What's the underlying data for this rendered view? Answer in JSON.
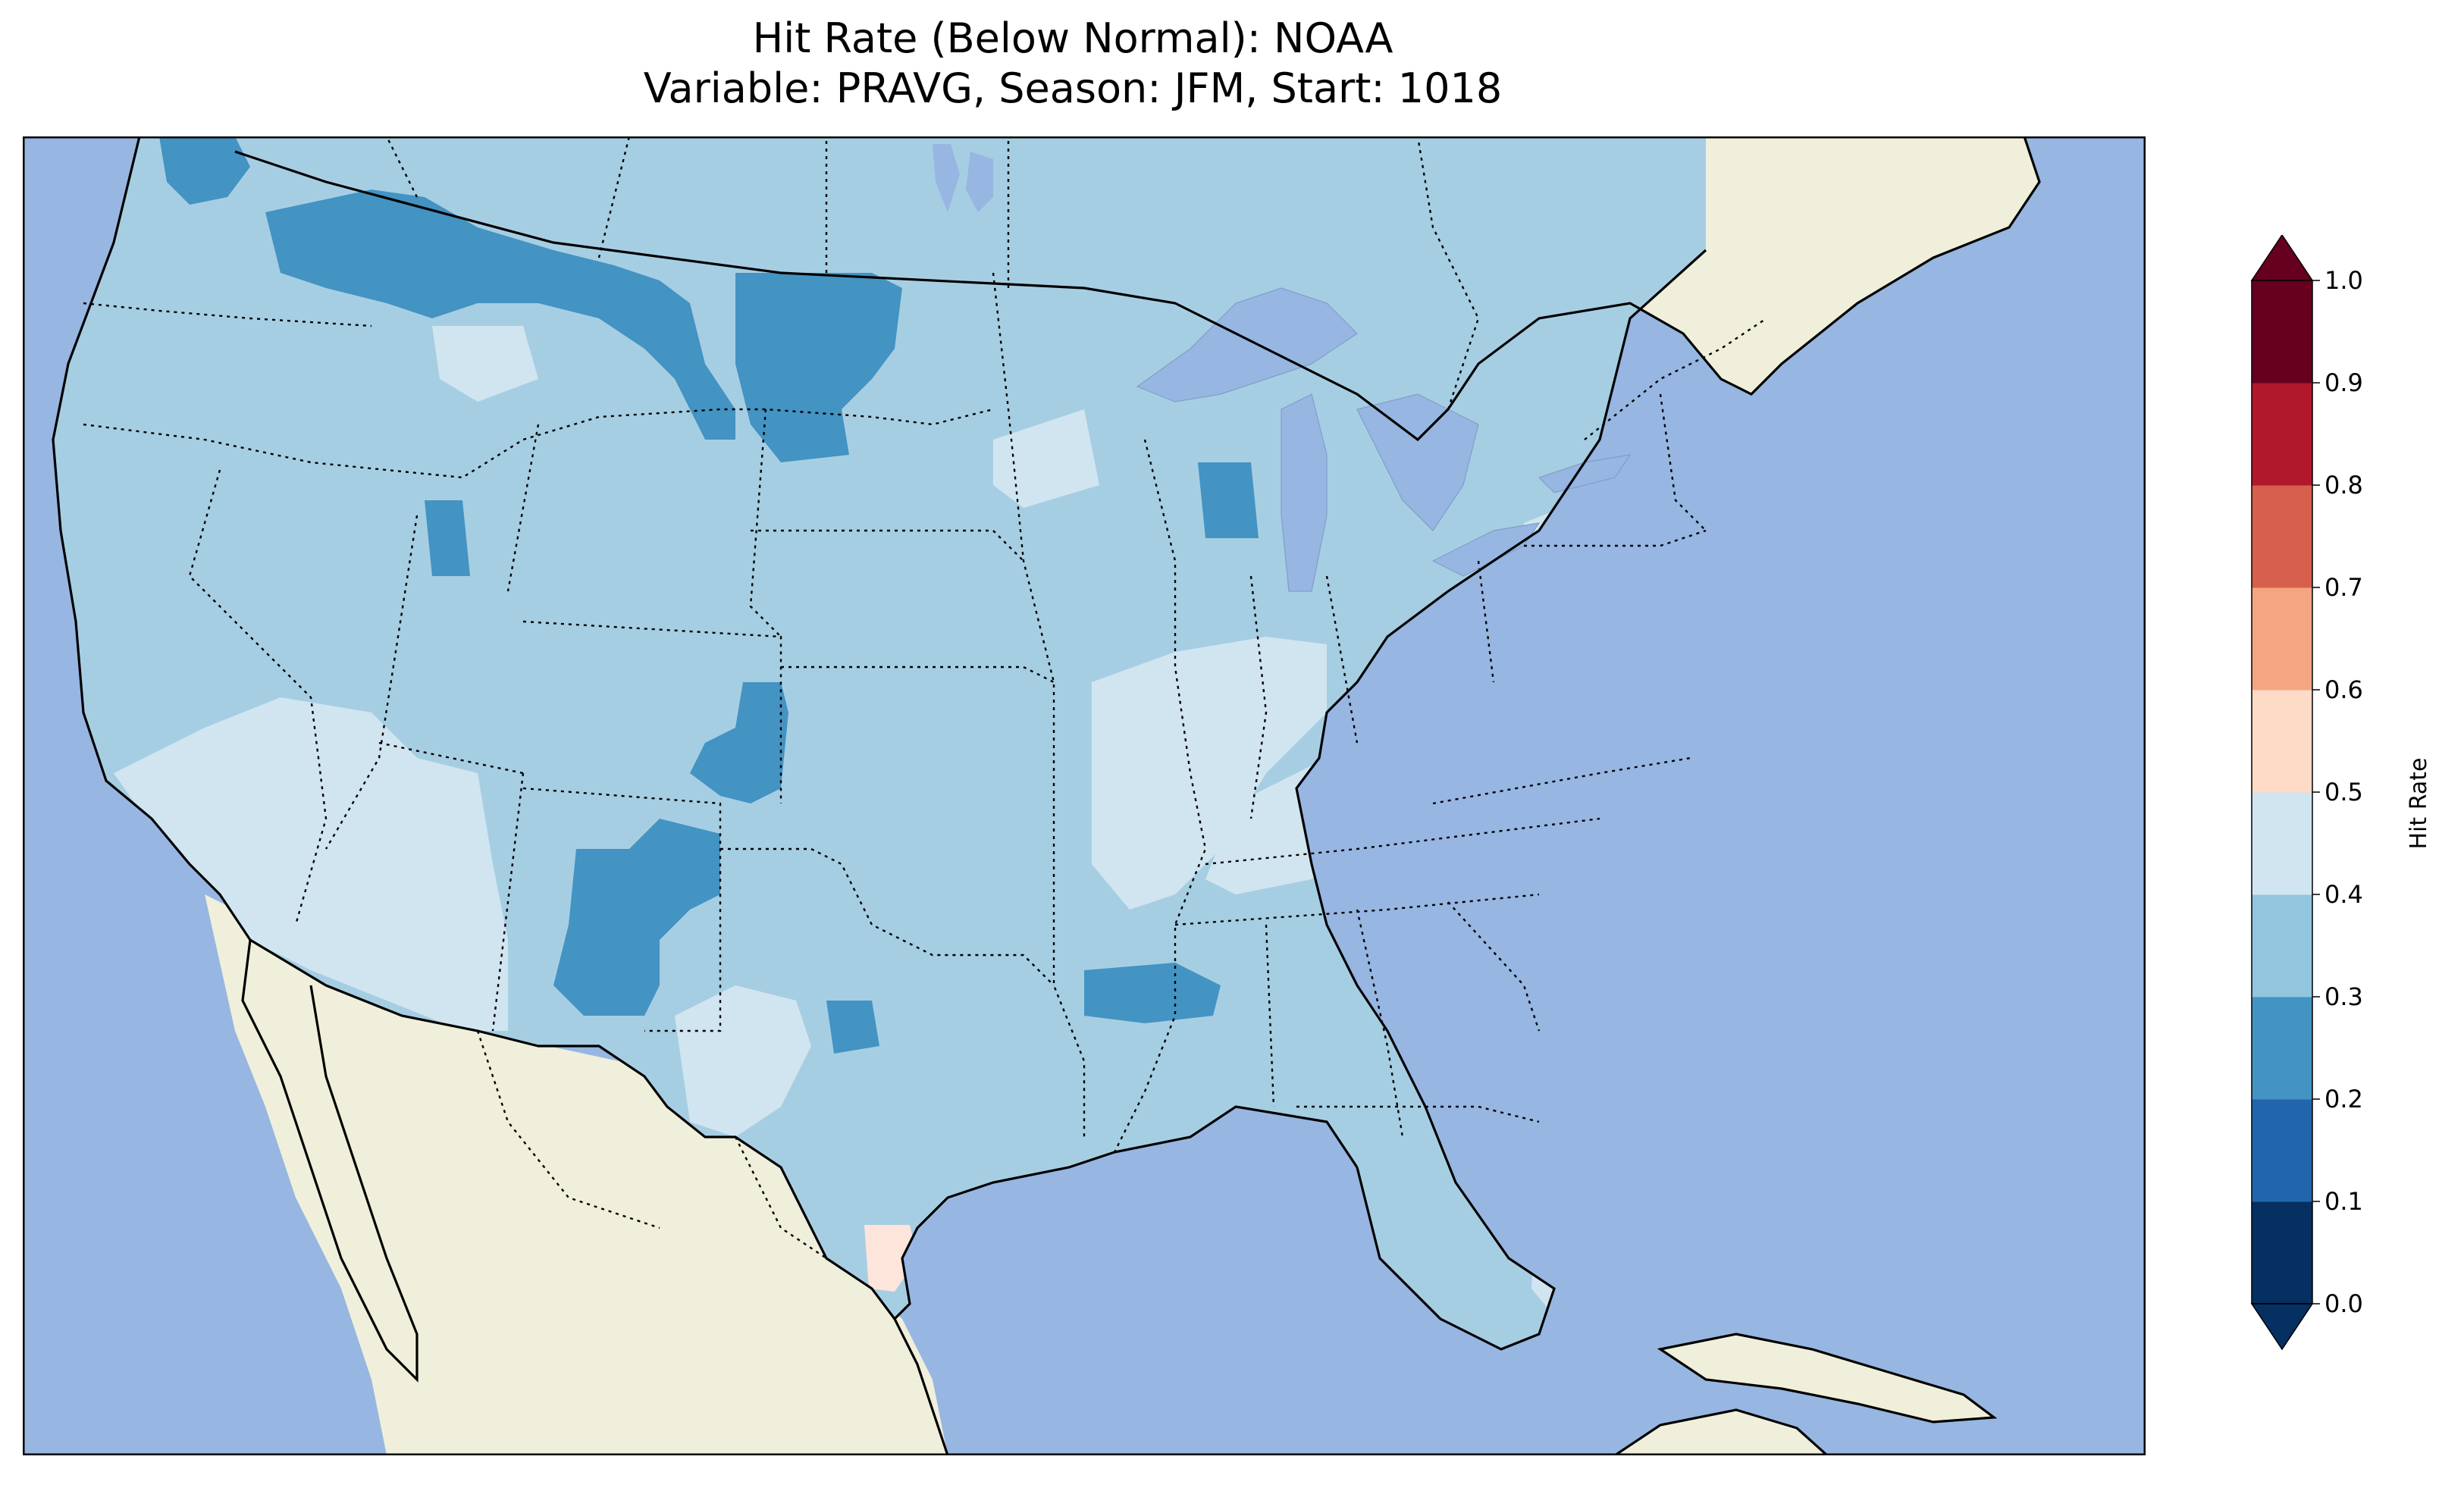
{
  "figure": {
    "title_line1": "Hit Rate (Below Normal): NOAA",
    "title_line2": "Variable: PRAVG, Season: JFM, Start: 1018"
  },
  "colorbar": {
    "label": "Hit Rate",
    "ticks": [
      "0.0",
      "0.1",
      "0.2",
      "0.3",
      "0.4",
      "0.5",
      "0.6",
      "0.7",
      "0.8",
      "0.9",
      "1.0"
    ],
    "bins": [
      {
        "range": "0.0-0.1",
        "color": "#053061"
      },
      {
        "range": "0.1-0.2",
        "color": "#2166ac"
      },
      {
        "range": "0.2-0.3",
        "color": "#4393c3"
      },
      {
        "range": "0.3-0.4",
        "color": "#92c5de"
      },
      {
        "range": "0.4-0.5",
        "color": "#d1e5f0"
      },
      {
        "range": "0.5-0.6",
        "color": "#fddbc7"
      },
      {
        "range": "0.6-0.7",
        "color": "#f4a582"
      },
      {
        "range": "0.7-0.8",
        "color": "#d6604d"
      },
      {
        "range": "0.8-0.9",
        "color": "#b2182b"
      },
      {
        "range": "0.9-1.0",
        "color": "#67001f"
      }
    ],
    "under_color": "#053061",
    "over_color": "#67001f"
  },
  "map_colors": {
    "ocean": "#97b6e1",
    "land": "#efefdb",
    "lakes": "#97b6e1",
    "bin_0_2_0_3": "#4393c3",
    "bin_0_3_0_4": "#a6cee3",
    "bin_0_4_0_5": "#d1e5f0",
    "bin_0_5_0_6": "#fde5dc"
  },
  "map_regions": [
    {
      "name": "northwest-washington",
      "bin": "0.2-0.3"
    },
    {
      "name": "idaho-montana-band",
      "bin": "0.2-0.3"
    },
    {
      "name": "montana-north-dakota",
      "bin": "0.2-0.3"
    },
    {
      "name": "southern-wyoming-colorado",
      "bin": "0.2-0.3"
    },
    {
      "name": "new-mexico",
      "bin": "0.2-0.3"
    },
    {
      "name": "arkansas-mississippi",
      "bin": "0.2-0.3"
    },
    {
      "name": "wisconsin",
      "bin": "0.2-0.3"
    },
    {
      "name": "south-carolina",
      "bin": "0.2-0.3"
    },
    {
      "name": "southern-california-nevada",
      "bin": "0.4-0.5"
    },
    {
      "name": "west-texas",
      "bin": "0.4-0.5"
    },
    {
      "name": "illinois-missouri",
      "bin": "0.4-0.5"
    },
    {
      "name": "kentucky-tennessee",
      "bin": "0.4-0.5"
    },
    {
      "name": "pennsylvania",
      "bin": "0.4-0.5"
    },
    {
      "name": "florida",
      "bin": "0.4-0.5"
    },
    {
      "name": "south-texas",
      "bin": "0.5-0.6"
    },
    {
      "name": "south-florida",
      "bin": "0.5-0.6"
    }
  ]
}
